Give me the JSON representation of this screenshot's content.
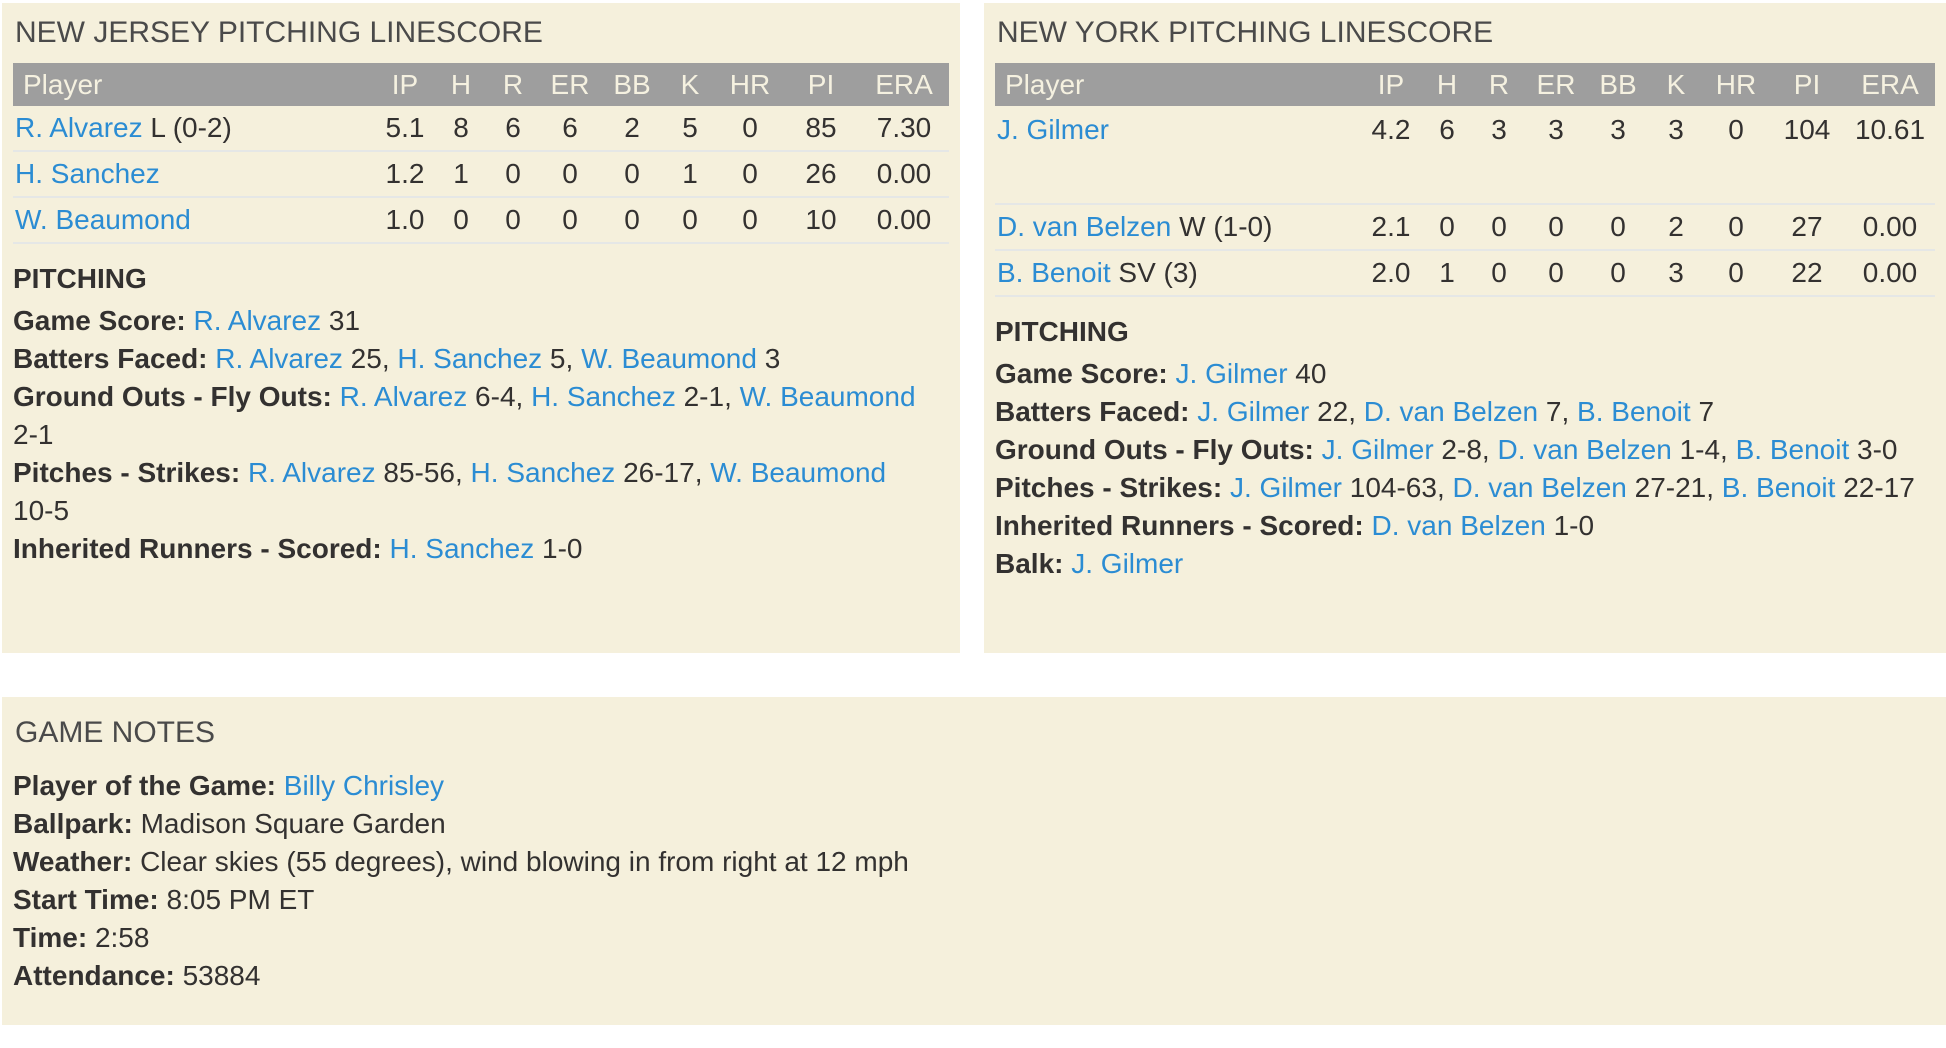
{
  "colors": {
    "page_bg": "#ffffff",
    "panel_bg": "#f5f0dc",
    "table_header_bg": "#9e9e9e",
    "table_header_text": "#f5f1e0",
    "link": "#2b8cd3",
    "text": "#333130",
    "title": "#4a4a4a",
    "row_divider": "#e5e7e6"
  },
  "nj": {
    "title": "NEW JERSEY PITCHING LINESCORE",
    "table": {
      "headers": [
        "Player",
        "IP",
        "H",
        "R",
        "ER",
        "BB",
        "K",
        "HR",
        "PI",
        "ERA"
      ],
      "rows": [
        {
          "player": "R. Alvarez",
          "suffix": " L (0-2)",
          "tall": false,
          "values": [
            "5.1",
            "8",
            "6",
            "6",
            "2",
            "5",
            "0",
            "85",
            "7.30"
          ]
        },
        {
          "player": "H. Sanchez",
          "suffix": "",
          "tall": false,
          "values": [
            "1.2",
            "1",
            "0",
            "0",
            "0",
            "1",
            "0",
            "26",
            "0.00"
          ]
        },
        {
          "player": "W. Beaumond",
          "suffix": "",
          "tall": false,
          "values": [
            "1.0",
            "0",
            "0",
            "0",
            "0",
            "0",
            "0",
            "10",
            "0.00"
          ]
        }
      ]
    },
    "section_title": "PITCHING",
    "notes": [
      [
        {
          "b": "Game Score:"
        },
        {
          "t": " "
        },
        {
          "l": "R. Alvarez"
        },
        {
          "t": " 31"
        }
      ],
      [
        {
          "b": "Batters Faced:"
        },
        {
          "t": " "
        },
        {
          "l": "R. Alvarez"
        },
        {
          "t": " 25, "
        },
        {
          "l": "H. Sanchez"
        },
        {
          "t": " 5, "
        },
        {
          "l": "W. Beaumond"
        },
        {
          "t": " 3"
        }
      ],
      [
        {
          "b": "Ground Outs - Fly Outs:"
        },
        {
          "t": " "
        },
        {
          "l": "R. Alvarez"
        },
        {
          "t": " 6-4, "
        },
        {
          "l": "H. Sanchez"
        },
        {
          "t": " 2-1, "
        },
        {
          "l": "W. Beaumond"
        },
        {
          "br": true
        },
        {
          "t": "2-1"
        }
      ],
      [
        {
          "b": "Pitches - Strikes:"
        },
        {
          "t": " "
        },
        {
          "l": "R. Alvarez"
        },
        {
          "t": " 85-56, "
        },
        {
          "l": "H. Sanchez"
        },
        {
          "t": " 26-17, "
        },
        {
          "l": "W. Beaumond"
        },
        {
          "br": true
        },
        {
          "t": "10-5"
        }
      ],
      [
        {
          "b": "Inherited Runners - Scored:"
        },
        {
          "t": " "
        },
        {
          "l": "H. Sanchez"
        },
        {
          "t": " 1-0"
        }
      ]
    ]
  },
  "ny": {
    "title": "NEW YORK PITCHING LINESCORE",
    "table": {
      "headers": [
        "Player",
        "IP",
        "H",
        "R",
        "ER",
        "BB",
        "K",
        "HR",
        "PI",
        "ERA"
      ],
      "rows": [
        {
          "player": "J. Gilmer",
          "suffix": "",
          "tall": true,
          "values": [
            "4.2",
            "6",
            "3",
            "3",
            "3",
            "3",
            "0",
            "104",
            "10.61"
          ]
        },
        {
          "player": "D. van Belzen",
          "suffix": " W (1-0)",
          "tall": false,
          "values": [
            "2.1",
            "0",
            "0",
            "0",
            "0",
            "2",
            "0",
            "27",
            "0.00"
          ]
        },
        {
          "player": "B. Benoit",
          "suffix": " SV (3)",
          "tall": false,
          "values": [
            "2.0",
            "1",
            "0",
            "0",
            "0",
            "3",
            "0",
            "22",
            "0.00"
          ]
        }
      ]
    },
    "section_title": "PITCHING",
    "notes": [
      [
        {
          "b": "Game Score:"
        },
        {
          "t": " "
        },
        {
          "l": "J. Gilmer"
        },
        {
          "t": " 40"
        }
      ],
      [
        {
          "b": "Batters Faced:"
        },
        {
          "t": " "
        },
        {
          "l": "J. Gilmer"
        },
        {
          "t": " 22, "
        },
        {
          "l": "D. van Belzen"
        },
        {
          "t": " 7, "
        },
        {
          "l": "B. Benoit"
        },
        {
          "t": " 7"
        }
      ],
      [
        {
          "b": "Ground Outs - Fly Outs:"
        },
        {
          "t": " "
        },
        {
          "l": "J. Gilmer"
        },
        {
          "t": " 2-8, "
        },
        {
          "l": "D. van Belzen"
        },
        {
          "t": " 1-4, "
        },
        {
          "l": "B. Benoit"
        },
        {
          "t": " 3-0"
        }
      ],
      [
        {
          "b": "Pitches - Strikes:"
        },
        {
          "t": " "
        },
        {
          "l": "J. Gilmer"
        },
        {
          "t": " 104-63, "
        },
        {
          "l": "D. van Belzen"
        },
        {
          "t": " 27-21, "
        },
        {
          "l": "B. Benoit"
        },
        {
          "t": " 22-17"
        }
      ],
      [
        {
          "b": "Inherited Runners - Scored:"
        },
        {
          "t": " "
        },
        {
          "l": "D. van Belzen"
        },
        {
          "t": " 1-0"
        }
      ],
      [
        {
          "b": "Balk:"
        },
        {
          "t": " "
        },
        {
          "l": "J. Gilmer"
        }
      ]
    ]
  },
  "game_notes": {
    "title": "GAME NOTES",
    "notes": [
      [
        {
          "b": "Player of the Game:"
        },
        {
          "t": " "
        },
        {
          "l": "Billy Chrisley"
        }
      ],
      [
        {
          "b": "Ballpark:"
        },
        {
          "t": " Madison Square Garden"
        }
      ],
      [
        {
          "b": "Weather:"
        },
        {
          "t": " Clear skies (55 degrees), wind blowing in from right at 12 mph"
        }
      ],
      [
        {
          "b": "Start Time:"
        },
        {
          "t": " 8:05 PM ET"
        }
      ],
      [
        {
          "b": "Time:"
        },
        {
          "t": " 2:58"
        }
      ],
      [
        {
          "b": "Attendance:"
        },
        {
          "t": " 53884"
        }
      ]
    ]
  }
}
